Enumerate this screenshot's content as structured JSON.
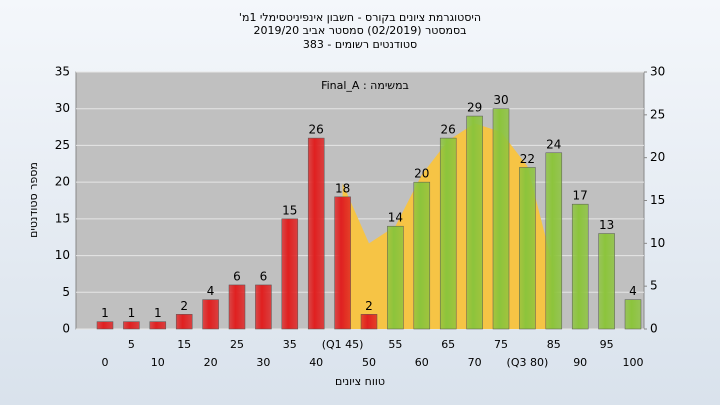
{
  "chart_data": {
    "type": "bar",
    "title": "'היסטוגרמת ציונים בקורס - חשבון אינפיניטסימלי 1מ",
    "subtitle": "בסמסטר  (02/2019)  סמסטר אביב 2019/20",
    "subtitle2": "סטודנטים רשומים - 383",
    "annotation": "Final_A : במשימה",
    "x_label": "טווח ציונים",
    "y_label": "מספר סטודנטים",
    "categories": [
      "0",
      "5",
      "10",
      "15",
      "20",
      "25",
      "30",
      "35",
      "40",
      "(Q1 45)",
      "50",
      "55",
      "60",
      "65",
      "70",
      "75",
      "(Q3 80)",
      "85",
      "90",
      "95",
      "100"
    ],
    "series": [
      {
        "values": [
          1,
          1,
          1,
          2,
          4,
          6,
          6,
          15,
          26,
          18,
          2,
          14,
          20,
          26,
          29,
          30,
          22,
          24,
          17,
          13,
          4
        ],
        "colors": [
          "#e02020",
          "#e02020",
          "#e02020",
          "#e02020",
          "#e02020",
          "#e02020",
          "#e02020",
          "#e02020",
          "#e02020",
          "#e02020",
          "#e02020",
          "#8cc43c",
          "#8cc43c",
          "#8cc43c",
          "#8cc43c",
          "#8cc43c",
          "#8cc43c",
          "#8cc43c",
          "#8cc43c",
          "#8cc43c",
          "#8cc43c"
        ]
      },
      {
        "type": "area",
        "axis": "y2",
        "color": "#f6c445",
        "values": [
          null,
          null,
          null,
          null,
          null,
          null,
          null,
          null,
          null,
          17,
          10,
          12,
          18,
          22,
          24,
          23,
          19,
          7,
          null,
          null,
          null
        ]
      }
    ],
    "ylim": [
      0,
      35
    ],
    "yticks": [
      0,
      5,
      10,
      15,
      20,
      25,
      30,
      35
    ],
    "y2lim": [
      0,
      30
    ],
    "y2ticks": [
      0,
      5,
      10,
      15,
      20,
      25,
      30
    ],
    "grid": true
  }
}
